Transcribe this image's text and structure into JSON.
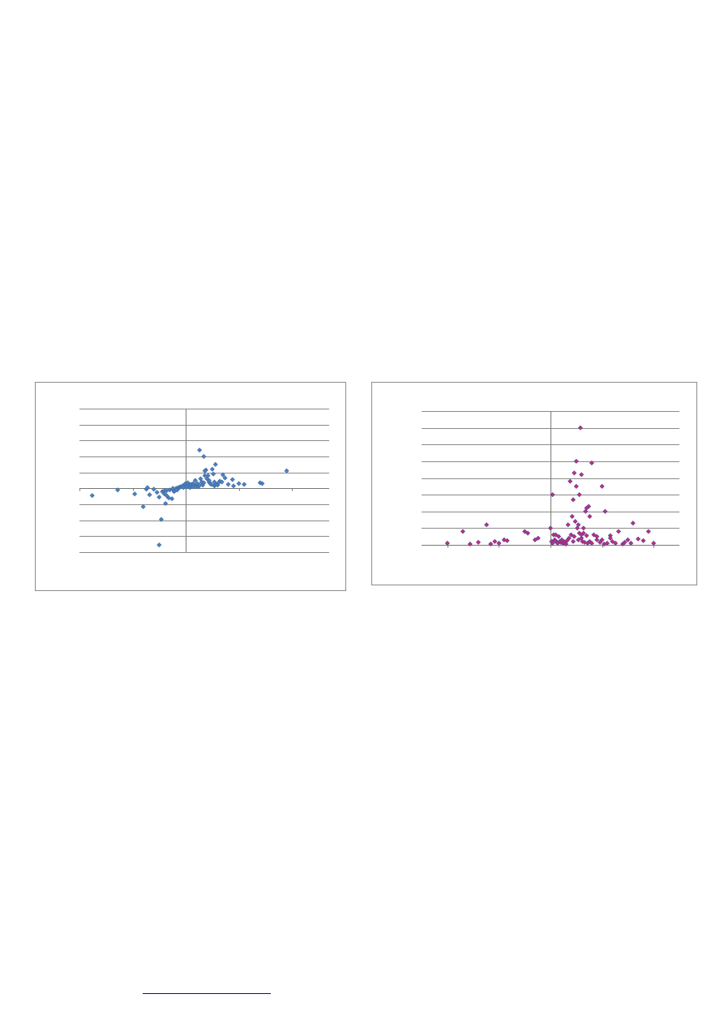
{
  "chart_data": [
    {
      "type": "scatter",
      "title": "",
      "xlabel": "",
      "ylabel": "",
      "grid": "horizontal",
      "legend": "none",
      "marker_color": "#4f81bd",
      "xlim": [
        -1.0,
        1.35
      ],
      "ylim": [
        -4,
        5
      ],
      "y_gridlines": [
        -4,
        -3,
        -2,
        -1,
        0,
        1,
        2,
        3,
        4,
        5
      ],
      "series": [
        {
          "x": [
            -0.88,
            -0.64,
            -0.48,
            -0.4,
            -0.37,
            -0.34,
            -0.3,
            -0.27,
            -0.25,
            -0.23,
            -0.22,
            -0.2,
            -0.19,
            -0.18,
            -0.16,
            -0.15,
            -0.13,
            -0.12,
            -0.11,
            -0.1,
            -0.09,
            -0.08,
            -0.07,
            -0.06,
            -0.05,
            -0.04,
            -0.03,
            -0.02,
            -0.01,
            0.0,
            0.01,
            0.02,
            0.03,
            0.04,
            0.05,
            0.06,
            0.07,
            0.08,
            0.09,
            0.1,
            0.11,
            0.12,
            0.13,
            0.14,
            0.15,
            0.16,
            0.17,
            0.18,
            0.19,
            0.2,
            0.21,
            0.22,
            0.23,
            0.24,
            0.25,
            0.26,
            0.27,
            0.28,
            0.3,
            0.32,
            0.34,
            0.37,
            0.4,
            0.44,
            0.5,
            0.55,
            0.7,
            0.72,
            0.95,
            -0.36,
            -0.2,
            -0.18,
            -0.25,
            -0.12,
            0.17,
            0.28,
            0.35,
            0.27,
            0.13,
            0.22,
            0.45,
            0.31,
            0.18,
            0.09,
            0.04
          ],
          "y": [
            -0.45,
            -0.1,
            -0.35,
            -1.15,
            -0.05,
            -0.4,
            -0.05,
            -0.25,
            -3.55,
            -1.95,
            -0.2,
            -0.15,
            -0.95,
            -0.45,
            -0.6,
            -0.1,
            -0.65,
            -0.05,
            -0.2,
            -0.15,
            0.0,
            -0.1,
            0.05,
            0.05,
            0.1,
            0.1,
            0.15,
            0.05,
            0.25,
            0.3,
            0.1,
            0.35,
            0.2,
            0.15,
            0.25,
            0.1,
            0.3,
            0.2,
            0.5,
            0.15,
            0.3,
            0.1,
            2.4,
            0.6,
            0.4,
            0.2,
            0.35,
            0.8,
            1.15,
            0.6,
            0.8,
            0.4,
            0.3,
            0.25,
            1.2,
            0.9,
            0.15,
            0.25,
            0.2,
            0.45,
            0.4,
            0.65,
            0.25,
            0.55,
            0.3,
            0.25,
            0.35,
            0.3,
            1.1,
            0.05,
            -0.35,
            -0.15,
            -0.55,
            0.0,
            2.0,
            1.5,
            0.85,
            0.4,
            0.2,
            0.5,
            0.15,
            0.35,
            1.1,
            0.1,
            0.05
          ]
        }
      ]
    },
    {
      "type": "scatter",
      "title": "",
      "xlabel": "",
      "ylabel": "",
      "grid": "horizontal",
      "legend": "none",
      "marker_color": "#c0307a",
      "xlim": [
        -1.25,
        1.25
      ],
      "ylim": [
        0,
        8
      ],
      "y_gridlines": [
        0,
        1,
        2,
        3,
        4,
        5,
        6,
        7,
        8
      ],
      "series": [
        {
          "x": [
            -1.0,
            -0.85,
            -0.78,
            -0.7,
            -0.62,
            -0.58,
            -0.54,
            -0.5,
            -0.45,
            -0.42,
            -0.25,
            -0.22,
            -0.15,
            -0.12,
            0.0,
            0.01,
            0.02,
            0.03,
            0.04,
            0.05,
            0.06,
            0.07,
            0.08,
            0.09,
            0.1,
            0.11,
            0.12,
            0.13,
            0.14,
            0.15,
            0.16,
            0.17,
            0.18,
            0.19,
            0.2,
            0.21,
            0.22,
            0.23,
            0.24,
            0.25,
            0.26,
            0.27,
            0.28,
            0.29,
            0.3,
            0.31,
            0.32,
            0.33,
            0.34,
            0.35,
            0.36,
            0.37,
            0.38,
            0.4,
            0.42,
            0.45,
            0.48,
            0.5,
            0.52,
            0.55,
            0.58,
            0.6,
            0.63,
            0.66,
            0.7,
            0.72,
            0.75,
            0.78,
            0.8,
            0.85,
            0.9,
            0.95,
            1.0,
            0.22,
            0.25,
            0.28,
            0.3,
            0.35,
            0.5,
            0.53,
            0.02,
            0.05,
            0.23,
            0.27,
            0.3,
            0.38,
            0.4,
            0.45,
            0.58,
            0.32
          ],
          "y": [
            0.1,
            0.8,
            0.05,
            0.15,
            1.2,
            0.05,
            0.2,
            0.1,
            0.3,
            0.25,
            0.8,
            0.7,
            0.3,
            0.4,
            1.0,
            0.2,
            0.1,
            0.6,
            0.3,
            0.25,
            0.15,
            0.1,
            0.5,
            0.2,
            0.15,
            0.3,
            0.1,
            0.2,
            0.1,
            0.05,
            0.25,
            1.2,
            0.4,
            3.8,
            0.6,
            1.7,
            0.2,
            0.5,
            1.4,
            3.5,
            1.0,
            0.3,
            0.7,
            7.0,
            0.4,
            0.2,
            0.7,
            0.15,
            2.0,
            0.55,
            0.1,
            2.3,
            0.2,
            0.1,
            0.6,
            0.5,
            0.15,
            0.3,
            0.05,
            0.1,
            0.55,
            0.2,
            0.1,
            0.8,
            0.05,
            0.15,
            0.3,
            0.1,
            1.3,
            0.35,
            0.25,
            0.8,
            0.1,
            2.7,
            5.0,
            3.0,
            4.2,
            2.2,
            3.5,
            2.0,
            3.0,
            0.6,
            4.3,
            1.2,
            0.6,
            1.7,
            4.9,
            0.3,
            0.4,
            1.0
          ]
        }
      ]
    }
  ]
}
